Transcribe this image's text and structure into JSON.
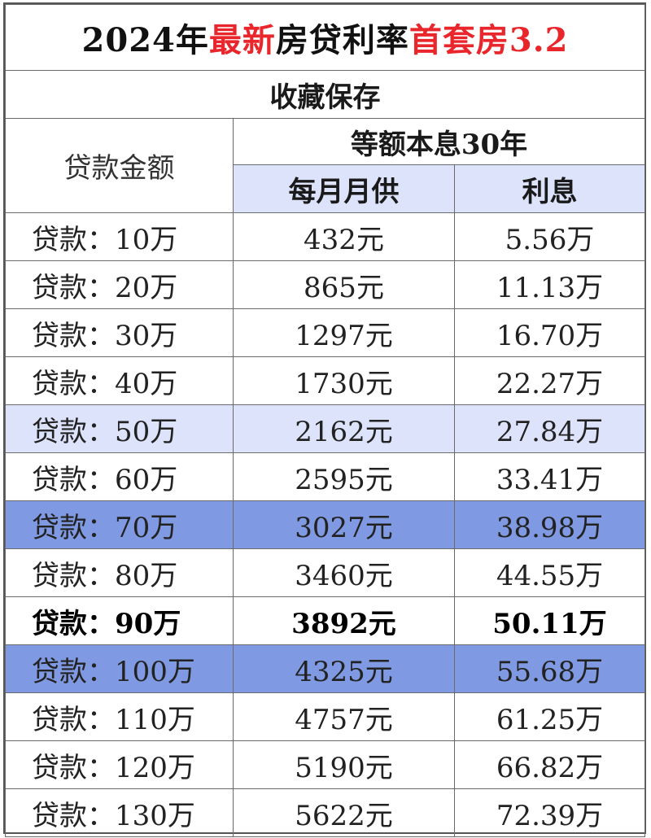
{
  "title": {
    "part1": "2024年",
    "part2": "最新",
    "part3": "房贷利率",
    "part4": "首套房3.2"
  },
  "subtitle": "收藏保存",
  "header": {
    "loan_amount": "贷款金额",
    "method": "等额本息30年",
    "monthly": "每月月供",
    "interest": "利息"
  },
  "colors": {
    "title_red": "#e8262c",
    "header_bg": "#dde3fb",
    "highlight_light": "#dce3fb",
    "highlight_dark": "#7f9ae2"
  },
  "rows": [
    {
      "amount": "贷款：10万",
      "monthly": "432元",
      "interest": "5.56万",
      "style": "normal"
    },
    {
      "amount": "贷款：20万",
      "monthly": "865元",
      "interest": "11.13万",
      "style": "normal"
    },
    {
      "amount": "贷款：30万",
      "monthly": "1297元",
      "interest": "16.70万",
      "style": "normal"
    },
    {
      "amount": "贷款：40万",
      "monthly": "1730元",
      "interest": "22.27万",
      "style": "normal"
    },
    {
      "amount": "贷款：50万",
      "monthly": "2162元",
      "interest": "27.84万",
      "style": "hl-light"
    },
    {
      "amount": "贷款：60万",
      "monthly": "2595元",
      "interest": "33.41万",
      "style": "normal"
    },
    {
      "amount": "贷款：70万",
      "monthly": "3027元",
      "interest": "38.98万",
      "style": "hl-dark"
    },
    {
      "amount": "贷款：80万",
      "monthly": "3460元",
      "interest": "44.55万",
      "style": "normal"
    },
    {
      "amount": "贷款：90万",
      "monthly": "3892元",
      "interest": "50.11万",
      "style": "bold"
    },
    {
      "amount": "贷款：100万",
      "monthly": "4325元",
      "interest": "55.68万",
      "style": "hl-dark"
    },
    {
      "amount": "贷款：110万",
      "monthly": "4757元",
      "interest": "61.25万",
      "style": "normal"
    },
    {
      "amount": "贷款：120万",
      "monthly": "5190元",
      "interest": "66.82万",
      "style": "normal"
    },
    {
      "amount": "贷款：130万",
      "monthly": "5622元",
      "interest": "72.39万",
      "style": "normal"
    }
  ]
}
